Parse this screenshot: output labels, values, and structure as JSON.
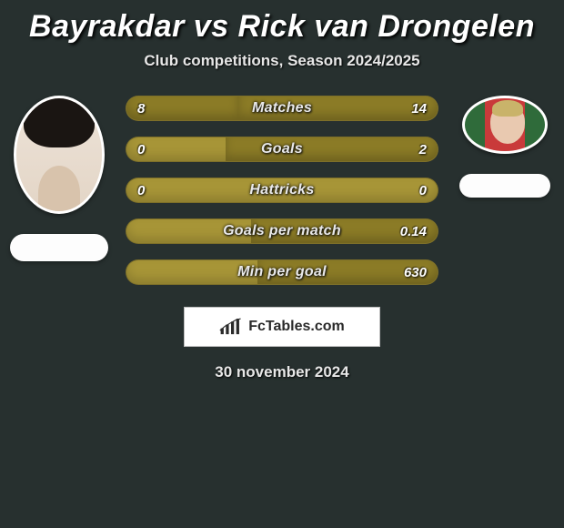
{
  "colors": {
    "background": "#27302f",
    "bar_base": "#a79537",
    "bar_fill": "#8b7b26",
    "text": "#ffffff",
    "subtext": "#e7e7e7",
    "brand_bg": "#ffffff",
    "brand_text": "#2a2a2a"
  },
  "title": "Bayrakdar vs Rick van Drongelen",
  "subtitle": "Club competitions, Season 2024/2025",
  "players": {
    "left": {
      "name": "Bayrakdar"
    },
    "right": {
      "name": "Rick van Drongelen"
    }
  },
  "bars": [
    {
      "label": "Matches",
      "left": "8",
      "right": "14",
      "left_pct": 36,
      "right_pct": 64
    },
    {
      "label": "Goals",
      "left": "0",
      "right": "2",
      "left_pct": 0,
      "right_pct": 68
    },
    {
      "label": "Hattricks",
      "left": "0",
      "right": "0",
      "left_pct": 0,
      "right_pct": 0
    },
    {
      "label": "Goals per match",
      "left": "",
      "right": "0.14",
      "left_pct": 0,
      "right_pct": 60
    },
    {
      "label": "Min per goal",
      "left": "",
      "right": "630",
      "left_pct": 0,
      "right_pct": 58
    }
  ],
  "brand": "FcTables.com",
  "date": "30 november 2024",
  "typography": {
    "title_fontsize": 34,
    "subtitle_fontsize": 17,
    "bar_label_fontsize": 16,
    "bar_value_fontsize": 15,
    "brand_fontsize": 16,
    "date_fontsize": 17
  }
}
